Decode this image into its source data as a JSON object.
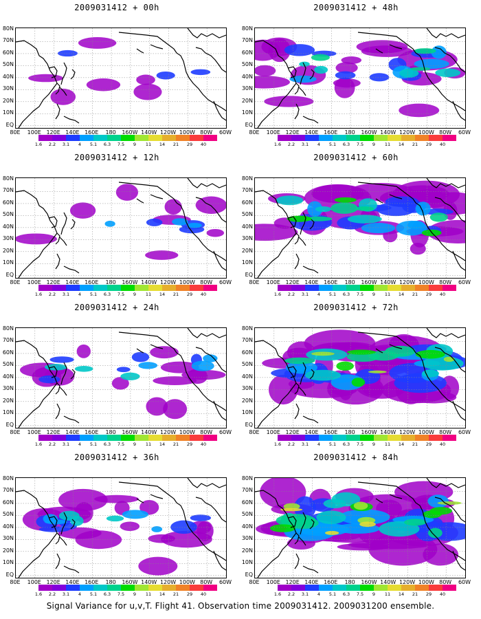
{
  "panels": [
    {
      "title": "2009031412 + 00h",
      "lead": "00h",
      "intensity": 0.05
    },
    {
      "title": "2009031412 + 48h",
      "lead": "48h",
      "intensity": 0.45
    },
    {
      "title": "2009031412 + 12h",
      "lead": "12h",
      "intensity": 0.12
    },
    {
      "title": "2009031412 + 60h",
      "lead": "60h",
      "intensity": 0.6
    },
    {
      "title": "2009031412 + 24h",
      "lead": "24h",
      "intensity": 0.25
    },
    {
      "title": "2009031412 + 72h",
      "lead": "72h",
      "intensity": 0.78
    },
    {
      "title": "2009031412 + 36h",
      "lead": "36h",
      "intensity": 0.35
    },
    {
      "title": "2009031412 + 84h",
      "lead": "84h",
      "intensity": 0.9
    }
  ],
  "lat_labels": [
    "80N",
    "70N",
    "60N",
    "50N",
    "40N",
    "30N",
    "20N",
    "10N",
    "EQ"
  ],
  "lon_labels": [
    "80E",
    "100E",
    "120E",
    "140E",
    "160E",
    "180",
    "160W",
    "140W",
    "120W",
    "100W",
    "80W",
    "60W"
  ],
  "colorbar": {
    "labels": [
      "1.6",
      "2.2",
      "3.1",
      "4",
      "5.1",
      "6.3",
      "7.5",
      "9",
      "11",
      "14",
      "21",
      "29",
      "40"
    ],
    "colors": [
      "#a000c8",
      "#8200dc",
      "#1e3cff",
      "#00a0ff",
      "#00c8c8",
      "#00d28c",
      "#00dc00",
      "#a0e632",
      "#e6dc32",
      "#e6af2d",
      "#f08228",
      "#fa3c3c",
      "#f00082"
    ]
  },
  "footer": "Signal Variance for u,v,T. Flight 41. Observation time 2009031412. 2009031200 ensemble."
}
